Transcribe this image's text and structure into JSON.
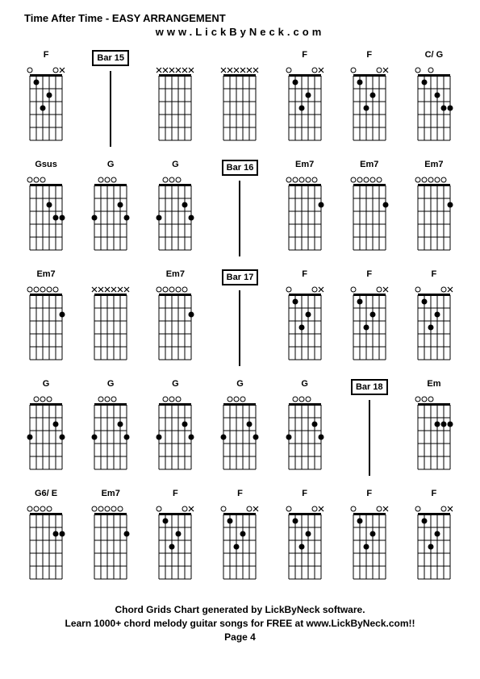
{
  "title": "Time After Time - EASY ARRANGEMENT",
  "subtitle": "www.LickByNeck.com",
  "footer_line1": "Chord Grids Chart generated by LickByNeck software.",
  "footer_line2": "Learn 1000+ chord melody guitar songs for FREE at www.LickByNeck.com!!",
  "page_label": "Page 4",
  "diagram_style": {
    "width": 60,
    "height": 100,
    "strings": 6,
    "frets": 5,
    "line_color": "#000000",
    "background_color": "#ffffff",
    "dot_color": "#000000",
    "open_circle_stroke": "#000000",
    "x_mark_color": "#000000",
    "font_size_label": 11
  },
  "cells": [
    {
      "type": "chord",
      "label": "F",
      "open": [
        0,
        4
      ],
      "muted": [
        5
      ],
      "dots": [
        [
          1,
          1
        ],
        [
          2,
          3
        ],
        [
          3,
          2
        ]
      ]
    },
    {
      "type": "bar",
      "label": "Bar 15"
    },
    {
      "type": "chord",
      "label": "",
      "open": [],
      "muted": [
        0,
        1,
        2,
        3,
        4,
        5
      ],
      "dots": []
    },
    {
      "type": "chord",
      "label": "",
      "open": [],
      "muted": [
        0,
        1,
        2,
        3,
        4,
        5
      ],
      "dots": []
    },
    {
      "type": "chord",
      "label": "F",
      "open": [
        0,
        4
      ],
      "muted": [
        5
      ],
      "dots": [
        [
          1,
          1
        ],
        [
          2,
          3
        ],
        [
          3,
          2
        ]
      ]
    },
    {
      "type": "chord",
      "label": "F",
      "open": [
        0,
        4
      ],
      "muted": [
        5
      ],
      "dots": [
        [
          1,
          1
        ],
        [
          2,
          3
        ],
        [
          3,
          2
        ]
      ]
    },
    {
      "type": "chord",
      "label": "C/ G",
      "open": [
        0,
        2
      ],
      "muted": [],
      "dots": [
        [
          1,
          1
        ],
        [
          3,
          2
        ],
        [
          4,
          3
        ],
        [
          5,
          3
        ]
      ]
    },
    {
      "type": "chord",
      "label": "Gsus",
      "open": [
        0,
        1,
        2
      ],
      "muted": [],
      "dots": [
        [
          3,
          2
        ],
        [
          4,
          3
        ],
        [
          5,
          3
        ]
      ]
    },
    {
      "type": "chord",
      "label": "G",
      "open": [
        1,
        2,
        3
      ],
      "muted": [],
      "dots": [
        [
          0,
          3
        ],
        [
          4,
          2
        ],
        [
          5,
          3
        ]
      ]
    },
    {
      "type": "chord",
      "label": "G",
      "open": [
        1,
        2,
        3
      ],
      "muted": [],
      "dots": [
        [
          0,
          3
        ],
        [
          4,
          2
        ],
        [
          5,
          3
        ]
      ]
    },
    {
      "type": "bar",
      "label": "Bar 16"
    },
    {
      "type": "chord",
      "label": "Em7",
      "open": [
        0,
        1,
        2,
        3,
        4
      ],
      "muted": [],
      "dots": [
        [
          5,
          2
        ]
      ]
    },
    {
      "type": "chord",
      "label": "Em7",
      "open": [
        0,
        1,
        2,
        3,
        4
      ],
      "muted": [],
      "dots": [
        [
          5,
          2
        ]
      ]
    },
    {
      "type": "chord",
      "label": "Em7",
      "open": [
        0,
        1,
        2,
        3,
        4
      ],
      "muted": [],
      "dots": [
        [
          5,
          2
        ]
      ]
    },
    {
      "type": "chord",
      "label": "Em7",
      "open": [
        0,
        1,
        2,
        3,
        4
      ],
      "muted": [],
      "dots": [
        [
          5,
          2
        ]
      ]
    },
    {
      "type": "chord",
      "label": "",
      "open": [],
      "muted": [
        0,
        1,
        2,
        3,
        4,
        5
      ],
      "dots": []
    },
    {
      "type": "chord",
      "label": "Em7",
      "open": [
        0,
        1,
        2,
        3,
        4
      ],
      "muted": [],
      "dots": [
        [
          5,
          2
        ]
      ]
    },
    {
      "type": "bar",
      "label": "Bar 17"
    },
    {
      "type": "chord",
      "label": "F",
      "open": [
        0,
        4
      ],
      "muted": [
        5
      ],
      "dots": [
        [
          1,
          1
        ],
        [
          2,
          3
        ],
        [
          3,
          2
        ]
      ]
    },
    {
      "type": "chord",
      "label": "F",
      "open": [
        0,
        4
      ],
      "muted": [
        5
      ],
      "dots": [
        [
          1,
          1
        ],
        [
          2,
          3
        ],
        [
          3,
          2
        ]
      ]
    },
    {
      "type": "chord",
      "label": "F",
      "open": [
        0,
        4
      ],
      "muted": [
        5
      ],
      "dots": [
        [
          1,
          1
        ],
        [
          2,
          3
        ],
        [
          3,
          2
        ]
      ]
    },
    {
      "type": "chord",
      "label": "G",
      "open": [
        1,
        2,
        3
      ],
      "muted": [],
      "dots": [
        [
          0,
          3
        ],
        [
          4,
          2
        ],
        [
          5,
          3
        ]
      ]
    },
    {
      "type": "chord",
      "label": "G",
      "open": [
        1,
        2,
        3
      ],
      "muted": [],
      "dots": [
        [
          0,
          3
        ],
        [
          4,
          2
        ],
        [
          5,
          3
        ]
      ]
    },
    {
      "type": "chord",
      "label": "G",
      "open": [
        1,
        2,
        3
      ],
      "muted": [],
      "dots": [
        [
          0,
          3
        ],
        [
          4,
          2
        ],
        [
          5,
          3
        ]
      ]
    },
    {
      "type": "chord",
      "label": "G",
      "open": [
        1,
        2,
        3
      ],
      "muted": [],
      "dots": [
        [
          0,
          3
        ],
        [
          4,
          2
        ],
        [
          5,
          3
        ]
      ]
    },
    {
      "type": "chord",
      "label": "G",
      "open": [
        1,
        2,
        3
      ],
      "muted": [],
      "dots": [
        [
          0,
          3
        ],
        [
          4,
          2
        ],
        [
          5,
          3
        ]
      ]
    },
    {
      "type": "bar",
      "label": "Bar 18"
    },
    {
      "type": "chord",
      "label": "Em",
      "open": [
        0,
        1,
        2
      ],
      "muted": [],
      "dots": [
        [
          3,
          2
        ],
        [
          4,
          2
        ],
        [
          5,
          2
        ]
      ]
    },
    {
      "type": "chord",
      "label": "G6/ E",
      "open": [
        0,
        1,
        2,
        3
      ],
      "muted": [],
      "dots": [
        [
          4,
          2
        ],
        [
          5,
          2
        ]
      ]
    },
    {
      "type": "chord",
      "label": "Em7",
      "open": [
        0,
        1,
        2,
        3,
        4
      ],
      "muted": [],
      "dots": [
        [
          5,
          2
        ]
      ]
    },
    {
      "type": "chord",
      "label": "F",
      "open": [
        0,
        4
      ],
      "muted": [
        5
      ],
      "dots": [
        [
          1,
          1
        ],
        [
          2,
          3
        ],
        [
          3,
          2
        ]
      ]
    },
    {
      "type": "chord",
      "label": "F",
      "open": [
        0,
        4
      ],
      "muted": [
        5
      ],
      "dots": [
        [
          1,
          1
        ],
        [
          2,
          3
        ],
        [
          3,
          2
        ]
      ]
    },
    {
      "type": "chord",
      "label": "F",
      "open": [
        0,
        4
      ],
      "muted": [
        5
      ],
      "dots": [
        [
          1,
          1
        ],
        [
          2,
          3
        ],
        [
          3,
          2
        ]
      ]
    },
    {
      "type": "chord",
      "label": "F",
      "open": [
        0,
        4
      ],
      "muted": [
        5
      ],
      "dots": [
        [
          1,
          1
        ],
        [
          2,
          3
        ],
        [
          3,
          2
        ]
      ]
    },
    {
      "type": "chord",
      "label": "F",
      "open": [
        0,
        4
      ],
      "muted": [
        5
      ],
      "dots": [
        [
          1,
          1
        ],
        [
          2,
          3
        ],
        [
          3,
          2
        ]
      ]
    }
  ]
}
